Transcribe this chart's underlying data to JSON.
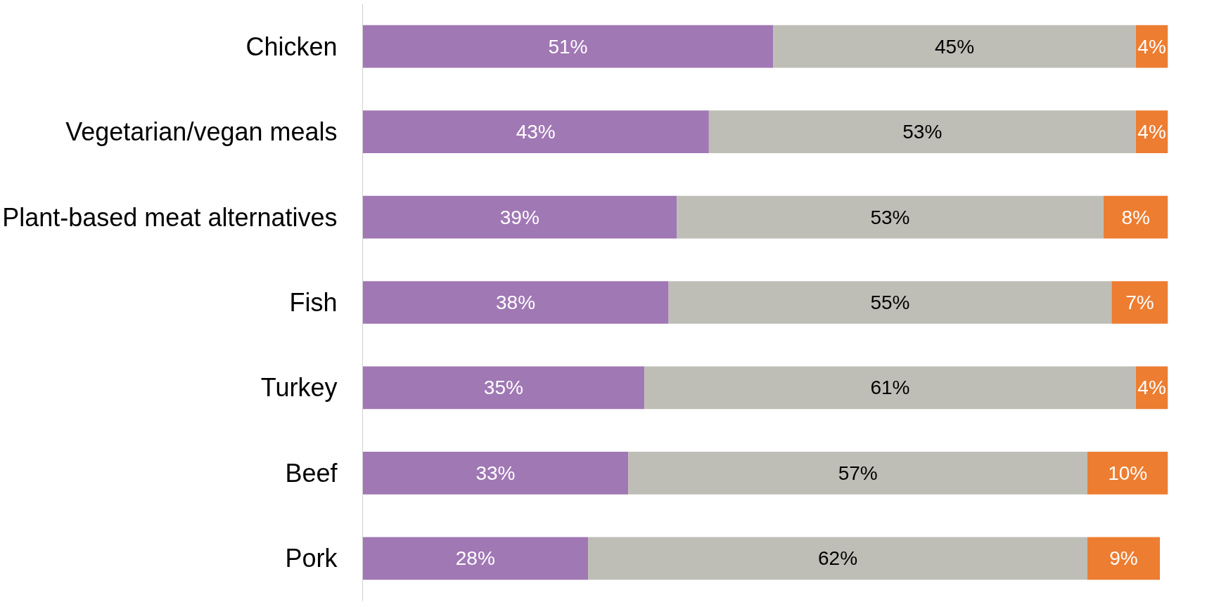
{
  "chart_data": {
    "type": "bar",
    "orientation": "horizontal",
    "stacked": true,
    "tick_labels": "y",
    "grid": false,
    "xlim": [
      0,
      100
    ],
    "categories": [
      "Chicken",
      "Vegetarian/vegan meals",
      "Plant-based meat alternatives",
      "Fish",
      "Turkey",
      "Beef",
      "Pork"
    ],
    "series": [
      {
        "color": "#a078b4",
        "values": [
          51,
          43,
          39,
          38,
          35,
          33,
          28
        ],
        "value_labels": [
          "51%",
          "43%",
          "39%",
          "38%",
          "35%",
          "33%",
          "28%"
        ]
      },
      {
        "color": "#bebeb6",
        "values": [
          45,
          53,
          53,
          55,
          61,
          57,
          62
        ],
        "value_labels": [
          "45%",
          "53%",
          "53%",
          "55%",
          "61%",
          "57%",
          "62%"
        ]
      },
      {
        "color": "#ed7d31",
        "values": [
          4,
          4,
          8,
          7,
          4,
          10,
          9
        ],
        "value_labels": [
          "4%",
          "4%",
          "8%",
          "7%",
          "4%",
          "10%",
          "9%"
        ]
      }
    ]
  }
}
